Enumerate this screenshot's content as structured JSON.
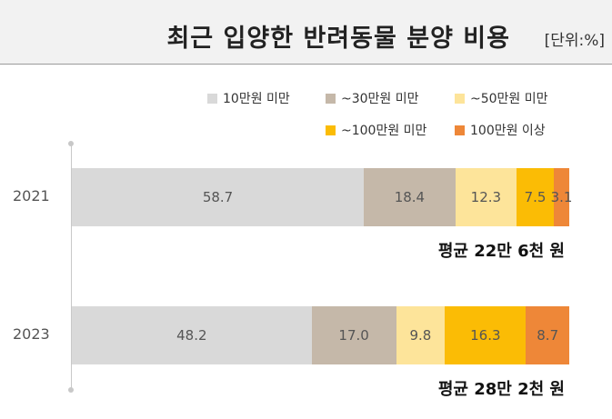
{
  "header": {
    "title": "최근 입양한 반려동물 분양 비용",
    "unit": "[단위:%]"
  },
  "chart_data": {
    "type": "bar",
    "orientation": "horizontal",
    "stacked": true,
    "title": "최근 입양한 반려동물 분양 비용",
    "unit": "[단위:%]",
    "categories": [
      "2021",
      "2023"
    ],
    "series": [
      {
        "name": "10만원 미만",
        "color": "#d9d9d9",
        "values": [
          58.7,
          48.2
        ],
        "labels": [
          "58.7",
          "48.2"
        ]
      },
      {
        "name": "~30만원 미만",
        "color": "#c5b8a9",
        "values": [
          18.4,
          17.0
        ],
        "labels": [
          "18.4",
          "17.0"
        ]
      },
      {
        "name": "~50만원 미만",
        "color": "#fde49a",
        "values": [
          12.3,
          9.8
        ],
        "labels": [
          "12.3",
          "9.8"
        ]
      },
      {
        "name": "~100만원 미만",
        "color": "#fbbc05",
        "values": [
          7.5,
          16.3
        ],
        "labels": [
          "7.5",
          "16.3"
        ]
      },
      {
        "name": "100만원 이상",
        "color": "#ee8738",
        "values": [
          3.1,
          8.7
        ],
        "labels": [
          "3.1",
          "8.7"
        ]
      }
    ],
    "averages": [
      "평균 22만 6천 원",
      "평균 28만 2천 원"
    ],
    "legend_position": "top-right",
    "xlim": [
      0,
      100
    ]
  }
}
